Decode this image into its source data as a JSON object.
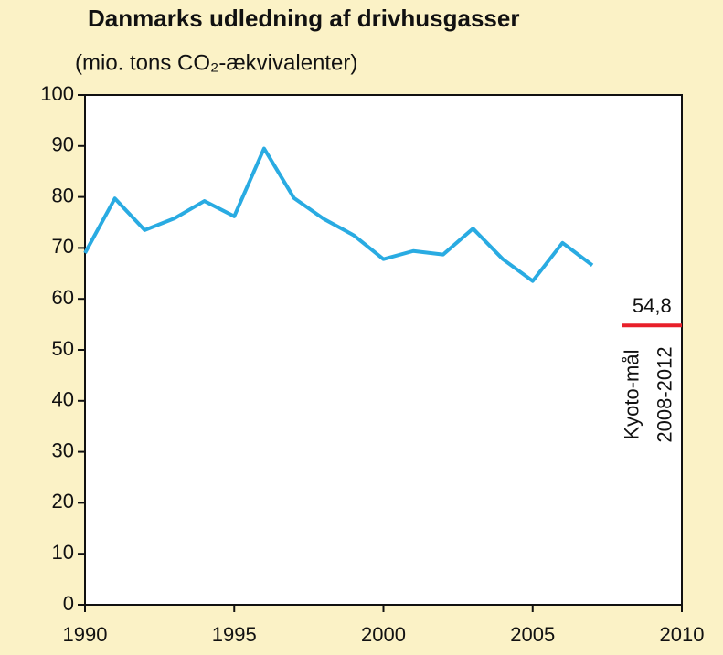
{
  "chart_data": {
    "type": "line",
    "title": "Danmarks udledning af drivhusgasser",
    "subtitle": "(mio. tons CO₂-ækvivalenter)",
    "x": [
      1990,
      1991,
      1992,
      1993,
      1994,
      1995,
      1996,
      1997,
      1998,
      1999,
      2000,
      2001,
      2002,
      2003,
      2004,
      2005,
      2006,
      2007
    ],
    "values": [
      69.0,
      79.7,
      73.5,
      75.8,
      79.2,
      76.2,
      89.5,
      79.8,
      75.7,
      72.5,
      67.8,
      69.4,
      68.7,
      73.8,
      67.8,
      63.5,
      71.0,
      66.6
    ],
    "color": "#29abe2",
    "xlim": [
      1990,
      2010
    ],
    "xticks": [
      1990,
      1995,
      2000,
      2005,
      2010
    ],
    "ylim": [
      0,
      100
    ],
    "yticks": [
      0,
      10,
      20,
      30,
      40,
      50,
      60,
      70,
      80,
      90,
      100
    ],
    "target": {
      "value": 54.8,
      "value_label": "54,8",
      "x": [
        2008,
        2010
      ],
      "color": "#e8202a",
      "label_lines": [
        "Kyoto-mål",
        "2008-2012"
      ]
    }
  }
}
